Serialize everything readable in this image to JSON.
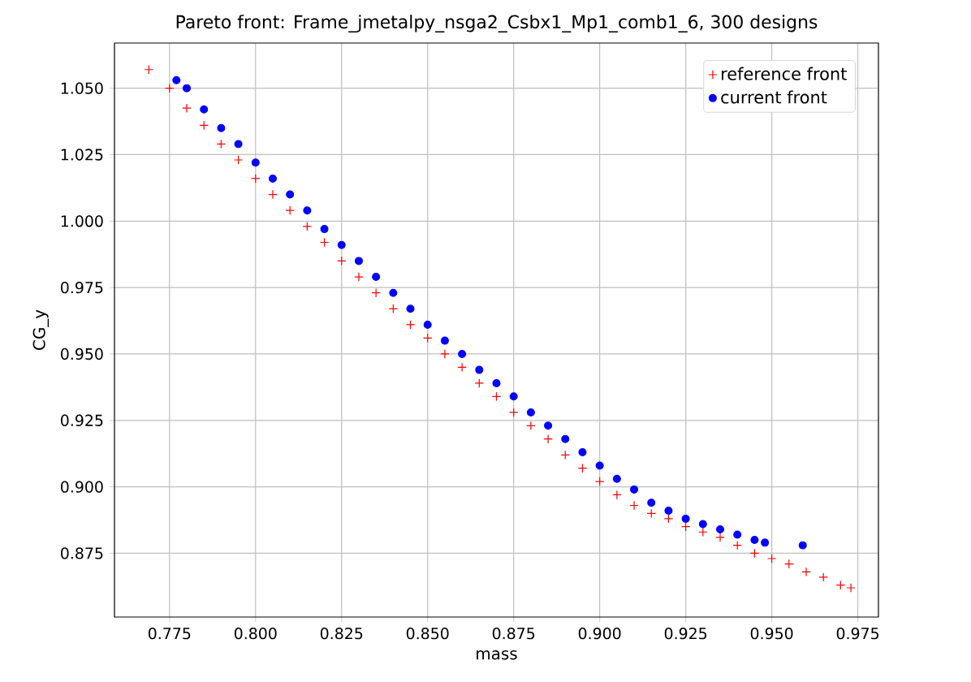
{
  "chart_data": {
    "type": "scatter",
    "title": "Pareto front: Frame_jmetalpy_nsga2_Csbx1_Mp1_comb1_6, 300 designs",
    "xlabel": "mass",
    "ylabel": "CG_y",
    "xlim": [
      0.759,
      0.981
    ],
    "ylim": [
      0.851,
      1.067
    ],
    "xticks": [
      {
        "value": 0.775,
        "label": "0.775"
      },
      {
        "value": 0.8,
        "label": "0.800"
      },
      {
        "value": 0.825,
        "label": "0.825"
      },
      {
        "value": 0.85,
        "label": "0.850"
      },
      {
        "value": 0.875,
        "label": "0.875"
      },
      {
        "value": 0.9,
        "label": "0.900"
      },
      {
        "value": 0.925,
        "label": "0.925"
      },
      {
        "value": 0.95,
        "label": "0.950"
      },
      {
        "value": 0.975,
        "label": "0.975"
      }
    ],
    "yticks": [
      {
        "value": 0.875,
        "label": "0.875"
      },
      {
        "value": 0.9,
        "label": "0.900"
      },
      {
        "value": 0.925,
        "label": "0.925"
      },
      {
        "value": 0.95,
        "label": "0.950"
      },
      {
        "value": 0.975,
        "label": "0.975"
      },
      {
        "value": 1.0,
        "label": "1.000"
      },
      {
        "value": 1.025,
        "label": "1.025"
      },
      {
        "value": 1.05,
        "label": "1.050"
      }
    ],
    "grid": true,
    "legend": "top right",
    "series": [
      {
        "name": "reference front",
        "color": "#ff0000",
        "marker": "cross",
        "x": [
          0.769,
          0.775,
          0.78,
          0.785,
          0.79,
          0.795,
          0.8,
          0.805,
          0.81,
          0.815,
          0.82,
          0.825,
          0.83,
          0.835,
          0.84,
          0.845,
          0.85,
          0.855,
          0.86,
          0.865,
          0.87,
          0.875,
          0.88,
          0.885,
          0.89,
          0.895,
          0.9,
          0.905,
          0.91,
          0.915,
          0.92,
          0.925,
          0.93,
          0.935,
          0.94,
          0.945,
          0.95,
          0.955,
          0.96,
          0.965,
          0.97,
          0.973
        ],
        "values": [
          1.057,
          1.05,
          1.0425,
          1.036,
          1.029,
          1.023,
          1.016,
          1.01,
          1.004,
          0.998,
          0.992,
          0.985,
          0.979,
          0.973,
          0.967,
          0.961,
          0.956,
          0.95,
          0.945,
          0.939,
          0.934,
          0.928,
          0.923,
          0.918,
          0.912,
          0.907,
          0.902,
          0.897,
          0.893,
          0.89,
          0.888,
          0.885,
          0.883,
          0.881,
          0.878,
          0.875,
          0.873,
          0.871,
          0.868,
          0.866,
          0.863,
          0.862
        ]
      },
      {
        "name": "current front",
        "color": "#0000ff",
        "marker": "circle",
        "x": [
          0.777,
          0.78,
          0.785,
          0.79,
          0.795,
          0.8,
          0.805,
          0.81,
          0.815,
          0.82,
          0.825,
          0.83,
          0.835,
          0.84,
          0.845,
          0.85,
          0.855,
          0.86,
          0.865,
          0.87,
          0.875,
          0.88,
          0.885,
          0.89,
          0.895,
          0.9,
          0.905,
          0.91,
          0.915,
          0.92,
          0.925,
          0.93,
          0.935,
          0.94,
          0.945,
          0.948,
          0.959
        ],
        "values": [
          1.053,
          1.05,
          1.042,
          1.035,
          1.029,
          1.022,
          1.016,
          1.01,
          1.004,
          0.997,
          0.991,
          0.985,
          0.979,
          0.973,
          0.967,
          0.961,
          0.955,
          0.95,
          0.944,
          0.939,
          0.934,
          0.928,
          0.923,
          0.918,
          0.913,
          0.908,
          0.903,
          0.899,
          0.894,
          0.891,
          0.888,
          0.886,
          0.884,
          0.882,
          0.88,
          0.879,
          0.878
        ]
      }
    ]
  }
}
